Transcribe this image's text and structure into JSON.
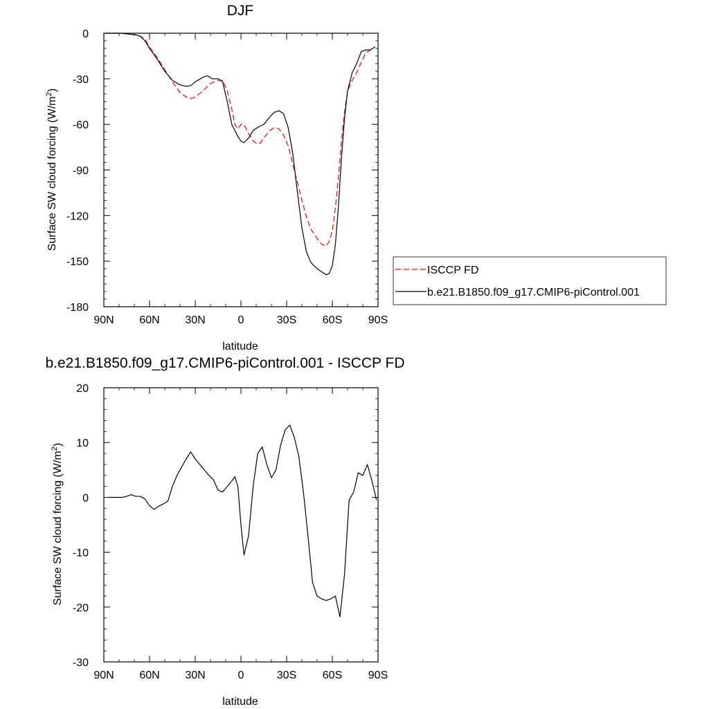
{
  "chart_data": [
    {
      "type": "line",
      "title": "DJF",
      "xlabel": "latitude",
      "ylabel_main": "Surface SW cloud forcing (W/m",
      "ylabel_sup": "2",
      "ylabel_close": ")",
      "xlim": [
        -90,
        90
      ],
      "ylim": [
        -180,
        0
      ],
      "xticks": [
        -90,
        -60,
        -30,
        0,
        30,
        60,
        90
      ],
      "xtick_labels": [
        "90N",
        "60N",
        "30N",
        "0",
        "30S",
        "60S",
        "90S"
      ],
      "yticks": [
        0,
        -30,
        -60,
        -90,
        -120,
        -150,
        -180
      ],
      "ytick_labels": [
        "0",
        "-30",
        "-60",
        "-90",
        "-120",
        "-150",
        "-180"
      ],
      "legend_position": "right",
      "series": [
        {
          "name": "ISCCP FD",
          "color": "#ff0000",
          "dash": "dashed",
          "x": [
            -89,
            -84,
            -79,
            -74,
            -69,
            -66,
            -63,
            -60,
            -55,
            -50,
            -45,
            -40,
            -36,
            -33,
            -30,
            -25,
            -20,
            -15,
            -12,
            -9,
            -6,
            -4,
            -2,
            0,
            2,
            5,
            8,
            11,
            13,
            15,
            19,
            22,
            25,
            28,
            31,
            34,
            37,
            40,
            43,
            46,
            50,
            53,
            56,
            58,
            60,
            62,
            64,
            66,
            68,
            70,
            73,
            76,
            79,
            82,
            85,
            88
          ],
          "y": [
            0,
            0,
            0,
            -0.5,
            -1,
            -2,
            -4,
            -9,
            -16,
            -24,
            -32,
            -39,
            -42,
            -43,
            -42,
            -38,
            -33,
            -31,
            -31,
            -38,
            -50,
            -60,
            -63,
            -60,
            -60,
            -66,
            -71,
            -73,
            -72,
            -69,
            -64,
            -62,
            -63,
            -67,
            -74,
            -86,
            -98,
            -110,
            -121,
            -129,
            -135,
            -139,
            -140,
            -137,
            -130,
            -115,
            -95,
            -71,
            -52,
            -38,
            -31,
            -26,
            -19,
            -13,
            -11,
            -9
          ]
        },
        {
          "name": "b.e21.B1850.f09_g17.CMIP6-piControl.001",
          "color": "#000000",
          "dash": "solid",
          "x": [
            -89,
            -84,
            -79,
            -74,
            -69,
            -66,
            -63,
            -60,
            -55,
            -50,
            -45,
            -40,
            -36,
            -33,
            -30,
            -25,
            -22,
            -19,
            -15,
            -12,
            -9,
            -6,
            -4,
            -2,
            0,
            2,
            5,
            8,
            11,
            13,
            15,
            19,
            22,
            25,
            28,
            31,
            34,
            37,
            40,
            43,
            46,
            50,
            53,
            56,
            58,
            60,
            62,
            64,
            66,
            68,
            70,
            73,
            76,
            79,
            82,
            85,
            88
          ],
          "y": [
            0,
            0,
            0,
            -0.5,
            -1,
            -2,
            -5,
            -10,
            -17,
            -25,
            -31,
            -34,
            -35,
            -34.5,
            -32,
            -29,
            -28,
            -30,
            -30,
            -32,
            -45,
            -60,
            -64,
            -68,
            -71,
            -72,
            -69,
            -64,
            -62,
            -61,
            -60,
            -55,
            -52,
            -51,
            -53,
            -62,
            -79,
            -104,
            -128,
            -144,
            -151,
            -155,
            -157,
            -159,
            -158,
            -153,
            -139,
            -114,
            -82,
            -56,
            -38,
            -26,
            -20,
            -12,
            -11,
            -11,
            -9
          ]
        }
      ]
    },
    {
      "type": "line",
      "title": "b.e21.B1850.f09_g17.CMIP6-piControl.001 - ISCCP FD",
      "xlabel": "latitude",
      "ylabel_main": "Surface SW cloud forcing (W/m",
      "ylabel_sup": "2",
      "ylabel_close": ")",
      "xlim": [
        -90,
        90
      ],
      "ylim": [
        -30,
        20
      ],
      "xticks": [
        -90,
        -60,
        -30,
        0,
        30,
        60,
        90
      ],
      "xtick_labels": [
        "90N",
        "60N",
        "30N",
        "0",
        "30S",
        "60S",
        "90S"
      ],
      "yticks": [
        20,
        10,
        0,
        -10,
        -20,
        -30
      ],
      "ytick_labels": [
        "20",
        "10",
        "0",
        "-10",
        "-20",
        "-30"
      ],
      "series": [
        {
          "color": "#000000",
          "dash": "solid",
          "x": [
            -87,
            -81,
            -78,
            -75,
            -72,
            -69,
            -66,
            -63,
            -60,
            -57,
            -54,
            -51,
            -48,
            -45,
            -42,
            -39,
            -36,
            -33,
            -30,
            -27,
            -24,
            -21,
            -18,
            -15,
            -12,
            -9,
            -6,
            -4,
            -2,
            0,
            2,
            5,
            8,
            11,
            14,
            17,
            20,
            23,
            26,
            29,
            32,
            35,
            38,
            41,
            44,
            47,
            50,
            53,
            56,
            59,
            62,
            65,
            68,
            71,
            74,
            77,
            80,
            83,
            86,
            89
          ],
          "y": [
            0,
            0,
            0,
            0.2,
            0.5,
            0.2,
            0.2,
            -0.3,
            -1.5,
            -2.2,
            -1.6,
            -1.2,
            -0.7,
            2,
            4,
            5.5,
            7,
            8.3,
            7,
            6,
            5,
            4,
            3.2,
            1.3,
            1,
            2,
            3,
            3.8,
            2,
            -5,
            -10.5,
            -7,
            2,
            8,
            9.2,
            6,
            3.6,
            5,
            9.5,
            12.3,
            13.2,
            11,
            7.5,
            1,
            -7,
            -15.5,
            -18,
            -18.5,
            -18.8,
            -18.5,
            -18,
            -21.8,
            -14,
            -0.5,
            1,
            4.5,
            4,
            6,
            3,
            -0.5
          ]
        }
      ]
    }
  ]
}
